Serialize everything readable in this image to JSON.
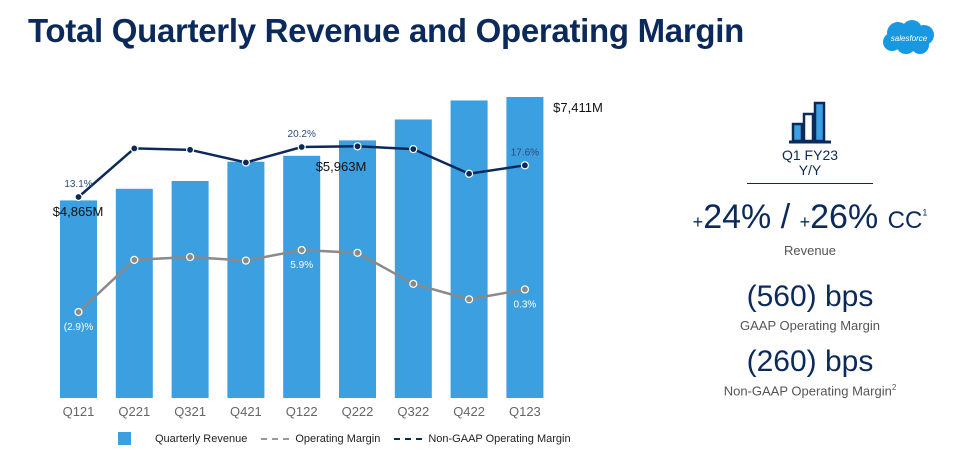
{
  "page": {
    "title": "Total Quarterly Revenue and Operating Margin",
    "logo_text": "salesforce",
    "colors": {
      "title": "#0b2a5b",
      "bar": "#3c9fdf",
      "gaap_line": "#888888",
      "nongaap_line": "#0b2a5b",
      "logo": "#1798e0"
    }
  },
  "kpi": {
    "period_line1": "Q1 FY23",
    "period_line2": "Y/Y",
    "revenue_growth": "24%",
    "revenue_growth_cc": "26%",
    "plus": "+",
    "separator": "/",
    "cc_label": "CC",
    "cc_footnote": "1",
    "revenue_label": "Revenue",
    "gaap_change": "(560) bps",
    "gaap_label": "GAAP Operating Margin",
    "nongaap_change": "(260) bps",
    "nongaap_label": "Non-GAAP Operating Margin",
    "nongaap_footnote": "2"
  },
  "chart_data": {
    "type": "bar",
    "title": "Total Quarterly Revenue and Operating Margin",
    "categories": [
      "Q121",
      "Q221",
      "Q321",
      "Q421",
      "Q122",
      "Q222",
      "Q322",
      "Q422",
      "Q123"
    ],
    "series": [
      {
        "name": "Quarterly Revenue",
        "type": "bar",
        "unit": "$M",
        "values": [
          4865,
          5151,
          5343,
          5817,
          5963,
          6343,
          6858,
          7326,
          7411
        ]
      },
      {
        "name": "Operating Margin",
        "type": "line",
        "unit": "%",
        "values": [
          -2.9,
          4.5,
          4.9,
          4.4,
          5.9,
          5.5,
          1.1,
          -1.1,
          0.3
        ]
      },
      {
        "name": "Non-GAAP Operating Margin",
        "type": "line",
        "unit": "%",
        "values": [
          13.1,
          20.0,
          19.8,
          18.0,
          20.2,
          20.3,
          19.9,
          16.4,
          17.6
        ]
      }
    ],
    "data_labels": [
      {
        "series": "Quarterly Revenue",
        "category": "Q121",
        "text": "$4,865M"
      },
      {
        "series": "Quarterly Revenue",
        "category": "Q122",
        "text": "$5,963M"
      },
      {
        "series": "Quarterly Revenue",
        "category": "Q123",
        "text": "$7,411M"
      },
      {
        "series": "Operating Margin",
        "category": "Q121",
        "text": "(2.9)%"
      },
      {
        "series": "Operating Margin",
        "category": "Q122",
        "text": "5.9%"
      },
      {
        "series": "Operating Margin",
        "category": "Q123",
        "text": "0.3%"
      },
      {
        "series": "Non-GAAP Operating Margin",
        "category": "Q121",
        "text": "13.1%"
      },
      {
        "series": "Non-GAAP Operating Margin",
        "category": "Q122",
        "text": "20.2%"
      },
      {
        "series": "Non-GAAP Operating Margin",
        "category": "Q123",
        "text": "17.6%"
      }
    ],
    "legend": [
      "Quarterly Revenue",
      "Operating Margin",
      "Non-GAAP Operating Margin"
    ],
    "legend_position": "bottom",
    "grid": false,
    "xlabel": "",
    "ylabel": ""
  }
}
